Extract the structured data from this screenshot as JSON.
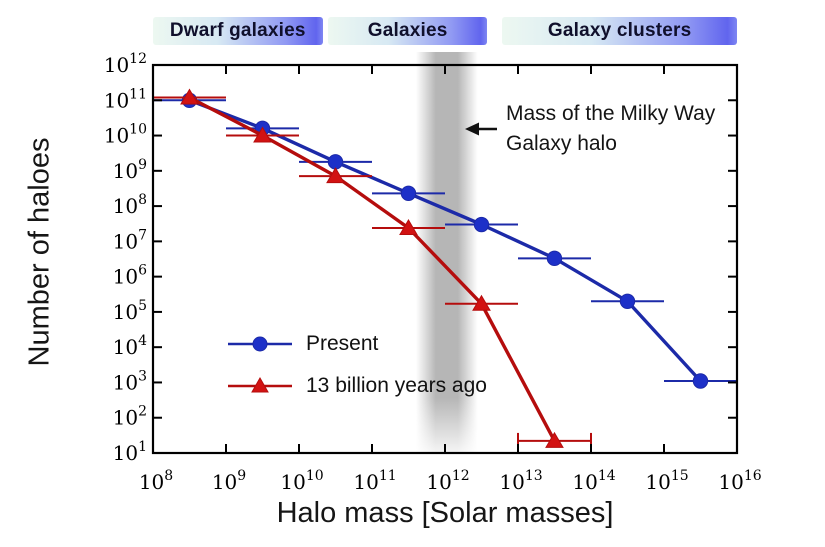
{
  "figure": {
    "bands": [
      {
        "label": "Dwarf galaxies",
        "from": 100000000.0,
        "to": 21000000000.0
      },
      {
        "label": "Galaxies",
        "from": 25000000000.0,
        "to": 3800000000000.0
      },
      {
        "label": "Galaxy clusters",
        "from": 6100000000000.0,
        "to": 1e+16
      }
    ],
    "annotation": {
      "line1": "Mass of the Milky Way",
      "line2": "Galaxy halo"
    },
    "xlabel": "Halo mass [Solar masses]",
    "ylabel": "Number of haloes"
  },
  "chart_data": {
    "type": "line",
    "title": "",
    "xlabel": "Halo mass [Solar masses]",
    "ylabel": "Number of haloes",
    "x_scale": "log",
    "y_scale": "log",
    "xlim": [
      100000000.0,
      1e+16
    ],
    "ylim": [
      10.0,
      1000000000000.0
    ],
    "grid": false,
    "legend_position": "inside-lower-left",
    "tick_label_base": "10",
    "x_tick_exponents": [
      8,
      9,
      10,
      11,
      12,
      13,
      14,
      15,
      16
    ],
    "y_tick_exponents": [
      1,
      2,
      3,
      4,
      5,
      6,
      7,
      8,
      9,
      10,
      11,
      12
    ],
    "highlight_band": {
      "meaning": "Mass of the Milky Way Galaxy halo",
      "from": 400000000000.0,
      "to": 2800000000000.0,
      "color": "#a2a2a2"
    },
    "series": [
      {
        "name": "Present",
        "marker": "circle",
        "color": "#1d30c8",
        "line_color": "#1c2aa8",
        "points": [
          {
            "x": 316000000.0,
            "y": 100000000000.0,
            "xlo": 100000000.0,
            "xhi": 1000000000.0
          },
          {
            "x": 3160000000.0,
            "y": 16000000000.0,
            "xlo": 1000000000.0,
            "xhi": 10000000000.0
          },
          {
            "x": 31600000000.0,
            "y": 1800000000.0,
            "xlo": 10000000000.0,
            "xhi": 100000000000.0
          },
          {
            "x": 316000000000.0,
            "y": 230000000.0,
            "xlo": 100000000000.0,
            "xhi": 1000000000000.0
          },
          {
            "x": 3160000000000.0,
            "y": 30000000.0,
            "xlo": 1000000000000.0,
            "xhi": 10000000000000.0
          },
          {
            "x": 31600000000000.0,
            "y": 3300000.0,
            "xlo": 10000000000000.0,
            "xhi": 100000000000000.0
          },
          {
            "x": 316000000000000.0,
            "y": 200000.0,
            "xlo": 100000000000000.0,
            "xhi": 1000000000000000.0
          },
          {
            "x": 3160000000000000.0,
            "y": 1100.0,
            "xlo": 1000000000000000.0,
            "xhi": 1e+16
          }
        ]
      },
      {
        "name": "13 billion years ago",
        "marker": "triangle",
        "color": "#d21212",
        "line_color": "#b50d0d",
        "points": [
          {
            "x": 316000000.0,
            "y": 120000000000.0,
            "xlo": 100000000.0,
            "xhi": 1000000000.0
          },
          {
            "x": 3160000000.0,
            "y": 10000000000.0,
            "xlo": 1000000000.0,
            "xhi": 10000000000.0
          },
          {
            "x": 31600000000.0,
            "y": 710000000.0,
            "xlo": 10000000000.0,
            "xhi": 100000000000.0
          },
          {
            "x": 316000000000.0,
            "y": 24000000.0,
            "xlo": 100000000000.0,
            "xhi": 1000000000000.0
          },
          {
            "x": 3160000000000.0,
            "y": 170000.0,
            "xlo": 1000000000000.0,
            "xhi": 10000000000000.0
          },
          {
            "x": 31600000000000.0,
            "y": 22.0,
            "xlo": 10000000000000.0,
            "xhi": 100000000000000.0,
            "caps": true
          }
        ]
      }
    ]
  }
}
